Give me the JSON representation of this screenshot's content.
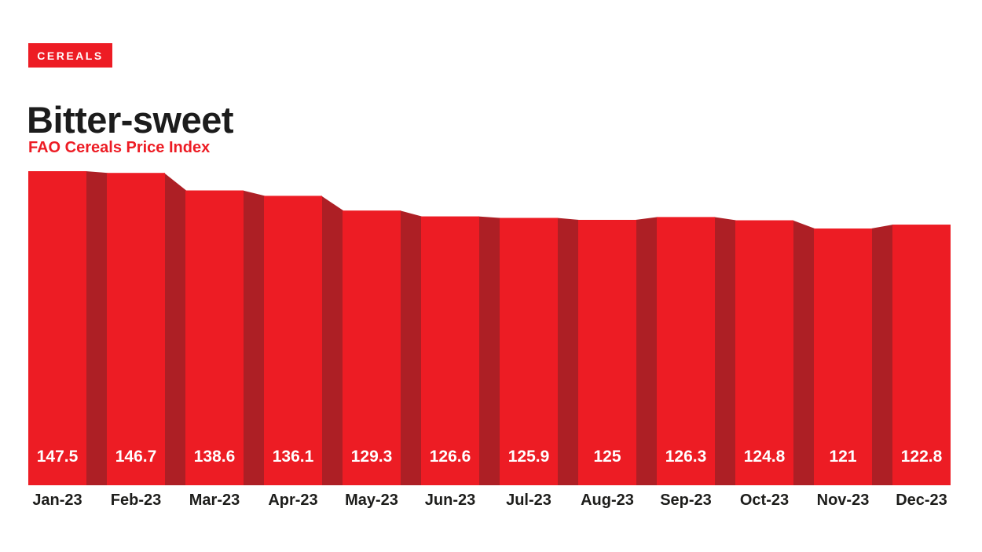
{
  "header": {
    "tag": "CEREALS",
    "title": "Bitter-sweet",
    "subtitle": "FAO Cereals Price Index"
  },
  "colors": {
    "accent_red": "#ED1C24",
    "connector_dark_red": "#AD1F25",
    "title_black": "#1C1C1C",
    "axis_label_black": "#1D1D1B",
    "value_label_white": "#FFFFFF",
    "background": "#FFFFFF"
  },
  "chart_data": {
    "type": "bar",
    "style": "3d-stepped-bars-with-dark-connectors",
    "title": "Bitter-sweet",
    "subtitle": "FAO Cereals Price Index",
    "tag": "CEREALS",
    "categories": [
      "Jan-23",
      "Feb-23",
      "Mar-23",
      "Apr-23",
      "May-23",
      "Jun-23",
      "Jul-23",
      "Aug-23",
      "Sep-23",
      "Oct-23",
      "Nov-23",
      "Dec-23"
    ],
    "values": [
      147.5,
      146.7,
      138.6,
      136.1,
      129.3,
      126.6,
      125.9,
      125,
      126.3,
      124.8,
      121,
      122.8
    ],
    "xlabel": "",
    "ylabel": "",
    "y_axis_visible": false,
    "gridlines": false,
    "legend": "none",
    "baseline_clipped": true,
    "value_label_position": "inside-bottom",
    "bar_color": "#ED1C24",
    "connector_color": "#AD1F25"
  }
}
